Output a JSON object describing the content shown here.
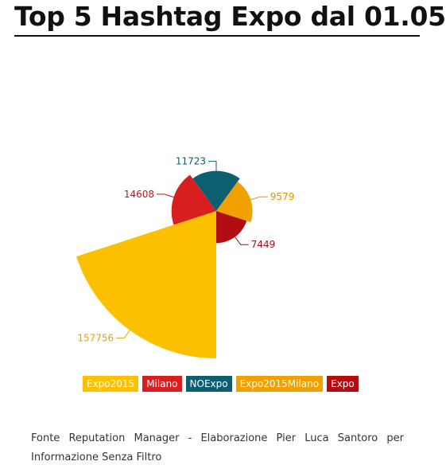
{
  "page": {
    "title": "Top 5 Hashtag Expo dal 01.05",
    "source": "Fonte Reputation Manager - Elaborazione Pier Luca Santoro per Informazione Senza Filtro"
  },
  "chart_data": {
    "type": "pie",
    "subtype": "polar-area",
    "categories": [
      "Expo2015",
      "Milano",
      "NOExpo",
      "Expo2015Milano",
      "Expo"
    ],
    "values": [
      157756,
      14608,
      11723,
      9579,
      7449
    ],
    "colors": [
      "#fcc000",
      "#d81e1e",
      "#0c5e70",
      "#f0a000",
      "#b30d12"
    ],
    "label_colors": [
      "#e0a800",
      "#b31a1a",
      "#0c5e70",
      "#e09500",
      "#9e0f12"
    ],
    "legend_position": "bottom"
  }
}
